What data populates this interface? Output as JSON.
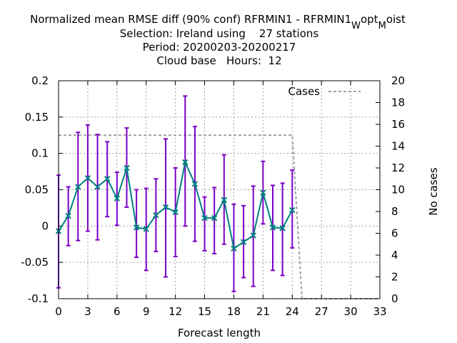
{
  "chart_data": {
    "type": "line",
    "title_lines": [
      "Normalized mean RMSE diff (90% conf) RFRMIN1 - RFRMIN1",
      "Selection: Ireland using    27 stations",
      "Period: 20200203-20200217",
      "Cloud base   Hours:  12"
    ],
    "title_subscripts": [
      "W",
      "opt",
      "M",
      "oist"
    ],
    "xlabel": "Forecast length",
    "ylabel": "",
    "y2label": "No cases",
    "xlim": [
      0,
      33
    ],
    "ylim": [
      -0.1,
      0.2
    ],
    "y2lim": [
      0,
      20
    ],
    "x_ticks": [
      0,
      3,
      6,
      9,
      12,
      15,
      18,
      21,
      24,
      27,
      30,
      33
    ],
    "y_ticks": [
      -0.1,
      -0.05,
      0,
      0.05,
      0.1,
      0.15,
      0.2
    ],
    "y_tick_labels": [
      "-0.1",
      "-0.05",
      "0",
      "0.05",
      "0.1",
      "0.15",
      "0.2"
    ],
    "y2_ticks": [
      0,
      2,
      4,
      6,
      8,
      10,
      12,
      14,
      16,
      18,
      20
    ],
    "grid": true,
    "legend": {
      "position": "top-right",
      "entries": [
        "Cases"
      ]
    },
    "colors": {
      "series": "#008080",
      "errorbar": "#7b00c8",
      "cases": "#a0a0a0"
    },
    "series": [
      {
        "x": [
          0,
          1,
          2,
          3,
          4,
          5,
          6,
          7,
          8,
          9,
          10,
          11,
          12,
          13,
          14,
          15,
          16,
          17,
          18,
          19,
          20,
          21,
          22,
          23,
          24
        ],
        "y": [
          -0.007,
          0.014,
          0.054,
          0.066,
          0.054,
          0.065,
          0.038,
          0.08,
          -0.002,
          -0.004,
          0.015,
          0.026,
          0.019,
          0.088,
          0.058,
          0.011,
          0.011,
          0.036,
          -0.031,
          -0.022,
          -0.013,
          0.046,
          -0.002,
          -0.003,
          0.022
        ],
        "ylow": [
          -0.085,
          -0.027,
          -0.02,
          -0.007,
          -0.019,
          0.013,
          0.001,
          0.026,
          -0.043,
          -0.061,
          -0.035,
          -0.07,
          -0.042,
          0.0,
          -0.021,
          -0.034,
          -0.038,
          -0.025,
          -0.09,
          -0.071,
          -0.083,
          0.003,
          -0.061,
          -0.068,
          -0.03
        ],
        "yhigh": [
          0.07,
          0.054,
          0.129,
          0.139,
          0.126,
          0.116,
          0.074,
          0.135,
          0.05,
          0.052,
          0.065,
          0.12,
          0.08,
          0.179,
          0.137,
          0.04,
          0.053,
          0.098,
          0.03,
          0.028,
          0.055,
          0.089,
          0.056,
          0.059,
          0.077
        ]
      },
      {
        "name": "Cases",
        "axis": "y2",
        "x": [
          0,
          24,
          25,
          33
        ],
        "y": [
          15,
          15,
          0,
          0
        ]
      }
    ]
  }
}
